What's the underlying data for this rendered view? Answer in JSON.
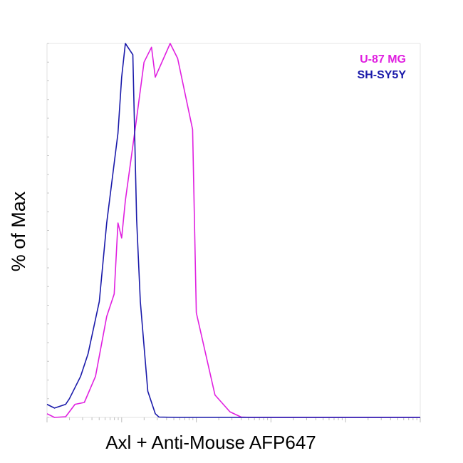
{
  "chart_data": {
    "type": "line",
    "title": "",
    "xlabel": "Axl + Anti-Mouse AFP647",
    "ylabel": "% of Max",
    "xscale": "log",
    "ylim": [
      0,
      100
    ],
    "legend_position": "top-right",
    "tick_labels_shown": false,
    "series": [
      {
        "name": "U-87 MG",
        "color": "#e020e0",
        "x": [
          0.0,
          0.02,
          0.05,
          0.075,
          0.1,
          0.13,
          0.16,
          0.18,
          0.19,
          0.21,
          0.2,
          0.24,
          0.26,
          0.28,
          0.33,
          0.29,
          0.39,
          0.35,
          0.4,
          0.45,
          0.49,
          0.52,
          0.55,
          0.7,
          1.0
        ],
        "y": [
          1.0,
          0.0,
          0.2,
          3.5,
          4.0,
          11.0,
          27.0,
          33.0,
          52.0,
          58.0,
          48.0,
          80.0,
          95.0,
          99.0,
          100.0,
          91.0,
          77.0,
          96.0,
          28.0,
          6.0,
          1.5,
          0.1,
          0.0,
          0.0,
          0.0
        ]
      },
      {
        "name": "SH-SY5Y",
        "color": "#1a1aaa",
        "x": [
          0.0,
          0.02,
          0.05,
          0.06,
          0.09,
          0.11,
          0.14,
          0.16,
          0.19,
          0.21,
          0.2,
          0.23,
          0.24,
          0.25,
          0.27,
          0.29,
          0.3,
          0.35,
          0.6,
          1.0
        ],
        "y": [
          3.5,
          2.5,
          3.5,
          5.0,
          11.0,
          17.0,
          31.0,
          52.0,
          76.0,
          100.0,
          91.0,
          97.0,
          53.0,
          31.0,
          7.0,
          1.0,
          0.1,
          0.0,
          0.0,
          0.0
        ]
      }
    ]
  }
}
